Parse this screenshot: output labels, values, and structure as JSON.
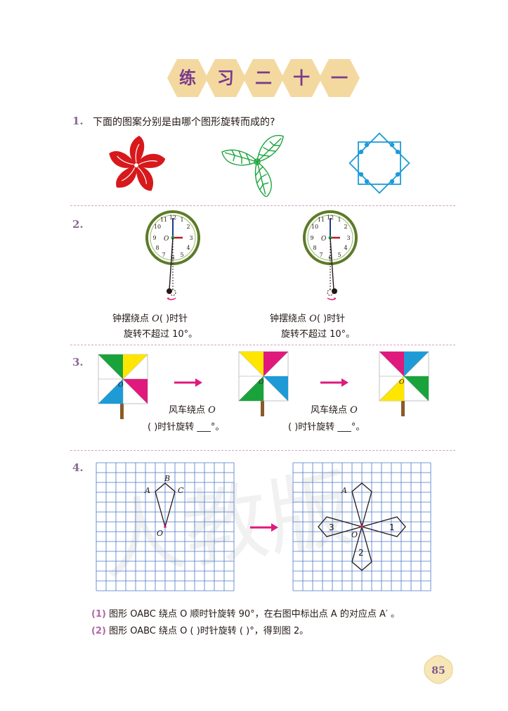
{
  "title": {
    "chars": [
      "练",
      "习",
      "二",
      "十",
      "一"
    ]
  },
  "q1": {
    "num": "1.",
    "text": "下面的图案分别是由哪个图形旋转而成的?"
  },
  "q2": {
    "num": "2.",
    "clock_numbers": [
      "12",
      "1",
      "2",
      "3",
      "4",
      "5",
      "6",
      "7",
      "8",
      "9",
      "10",
      "11"
    ],
    "center_label": "O",
    "left_caption_line1_a": "钟摆绕点",
    "left_caption_line1_b": "O",
    "left_caption_line1_c": "(    )时针",
    "left_caption_line2": "旋转不超过 10°。",
    "right_caption_line1_a": "钟摆绕点",
    "right_caption_line1_b": "O",
    "right_caption_line1_c": "(    )时针",
    "right_caption_line2": "旋转不超过 10°。"
  },
  "q3": {
    "num": "3.",
    "center_label": "O",
    "left_caption_line1_a": "风车绕点",
    "left_caption_line1_b": "O",
    "left_caption_line2": "(    )时针旋转 ___°。",
    "right_caption_line1_a": "风车绕点",
    "right_caption_line1_b": "O",
    "right_caption_line2": "(    )时针旋转 ___°。"
  },
  "q4": {
    "num": "4.",
    "labels_left": {
      "A": "A",
      "B": "B",
      "C": "C",
      "O": "O"
    },
    "labels_right": {
      "A": "A",
      "O": "O",
      "one": "1",
      "two": "2",
      "three": "3"
    },
    "sub1_num": "(1)",
    "sub1_text": "图形 OABC 绕点 O 顺时针旋转 90°，在右图中标出点 A 的对应点 A′ 。",
    "sub2_num": "(2)",
    "sub2_text": "图形 OABC 绕点 O (    )时针旋转 (    )°，得到图 2。"
  },
  "page_number": "85",
  "colors": {
    "title_hex": "#f3d9a0",
    "title_text": "#7a3a8c",
    "red_flower": "#d7191c",
    "green": "#1aa33b",
    "blue": "#1e9bd7",
    "grid": "#4a78c8",
    "arrow": "#e0197d",
    "divider": "#d8a0c6"
  }
}
